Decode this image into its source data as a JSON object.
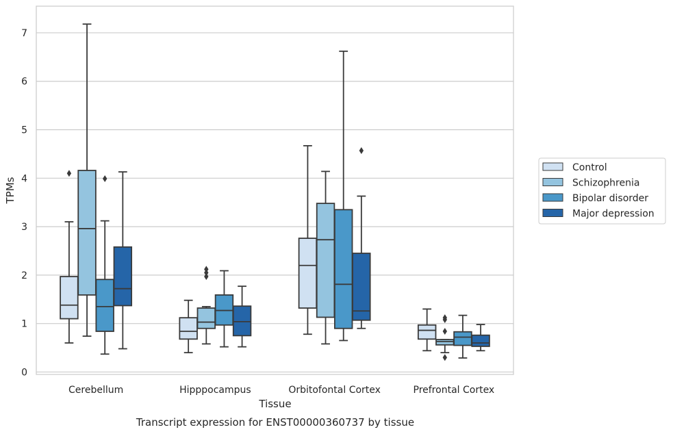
{
  "caption": "Transcript expression for ENST00000360737 by tissue",
  "chart_data": {
    "type": "boxplot",
    "xlabel": "Tissue",
    "ylabel": "TPMs",
    "ylim": [
      -0.05,
      7.55
    ],
    "yticks": [
      0,
      1,
      2,
      3,
      4,
      5,
      6,
      7
    ],
    "grid": "horizontal",
    "legend_position": "right",
    "categories": [
      "Cerebellum",
      "Hipppocampus",
      "Orbitofontal Cortex",
      "Prefrontal Cortex"
    ],
    "series": [
      {
        "name": "Control",
        "color": "#d0e1f2",
        "boxes": [
          {
            "whislo": 0.6,
            "q1": 1.1,
            "med": 1.38,
            "q3": 1.97,
            "whishi": 3.1,
            "fliers": [
              4.1
            ]
          },
          {
            "whislo": 0.4,
            "q1": 0.68,
            "med": 0.84,
            "q3": 1.12,
            "whishi": 1.48,
            "fliers": []
          },
          {
            "whislo": 0.78,
            "q1": 1.32,
            "med": 2.2,
            "q3": 2.76,
            "whishi": 4.67,
            "fliers": []
          },
          {
            "whislo": 0.44,
            "q1": 0.68,
            "med": 0.86,
            "q3": 0.97,
            "whishi": 1.3,
            "fliers": []
          }
        ]
      },
      {
        "name": "Schizophrenia",
        "color": "#94c4df",
        "boxes": [
          {
            "whislo": 0.74,
            "q1": 1.59,
            "med": 2.96,
            "q3": 4.16,
            "whishi": 7.18,
            "fliers": []
          },
          {
            "whislo": 0.58,
            "q1": 0.9,
            "med": 1.03,
            "q3": 1.32,
            "whishi": 1.35,
            "fliers": [
              1.97,
              2.05,
              2.12
            ]
          },
          {
            "whislo": 0.58,
            "q1": 1.13,
            "med": 2.73,
            "q3": 3.48,
            "whishi": 4.14,
            "fliers": []
          },
          {
            "whislo": 0.4,
            "q1": 0.56,
            "med": 0.63,
            "q3": 0.67,
            "whishi": 0.67,
            "fliers": [
              0.3,
              0.84,
              1.08,
              1.12
            ]
          }
        ]
      },
      {
        "name": "Bipolar disorder",
        "color": "#4a98c9",
        "boxes": [
          {
            "whislo": 0.37,
            "q1": 0.84,
            "med": 1.35,
            "q3": 1.91,
            "whishi": 3.12,
            "fliers": [
              3.99
            ]
          },
          {
            "whislo": 0.52,
            "q1": 0.97,
            "med": 1.27,
            "q3": 1.59,
            "whishi": 2.09,
            "fliers": []
          },
          {
            "whislo": 0.65,
            "q1": 0.9,
            "med": 1.81,
            "q3": 3.35,
            "whishi": 6.62,
            "fliers": []
          },
          {
            "whislo": 0.29,
            "q1": 0.55,
            "med": 0.72,
            "q3": 0.83,
            "whishi": 1.17,
            "fliers": []
          }
        ]
      },
      {
        "name": "Major depression",
        "color": "#2565a8",
        "boxes": [
          {
            "whislo": 0.48,
            "q1": 1.37,
            "med": 1.72,
            "q3": 2.58,
            "whishi": 4.13,
            "fliers": []
          },
          {
            "whislo": 0.52,
            "q1": 0.75,
            "med": 1.04,
            "q3": 1.36,
            "whishi": 1.77,
            "fliers": []
          },
          {
            "whislo": 0.9,
            "q1": 1.07,
            "med": 1.26,
            "q3": 2.45,
            "whishi": 3.63,
            "fliers": [
              4.57
            ]
          },
          {
            "whislo": 0.44,
            "q1": 0.53,
            "med": 0.6,
            "q3": 0.76,
            "whishi": 0.98,
            "fliers": []
          }
        ]
      }
    ]
  }
}
